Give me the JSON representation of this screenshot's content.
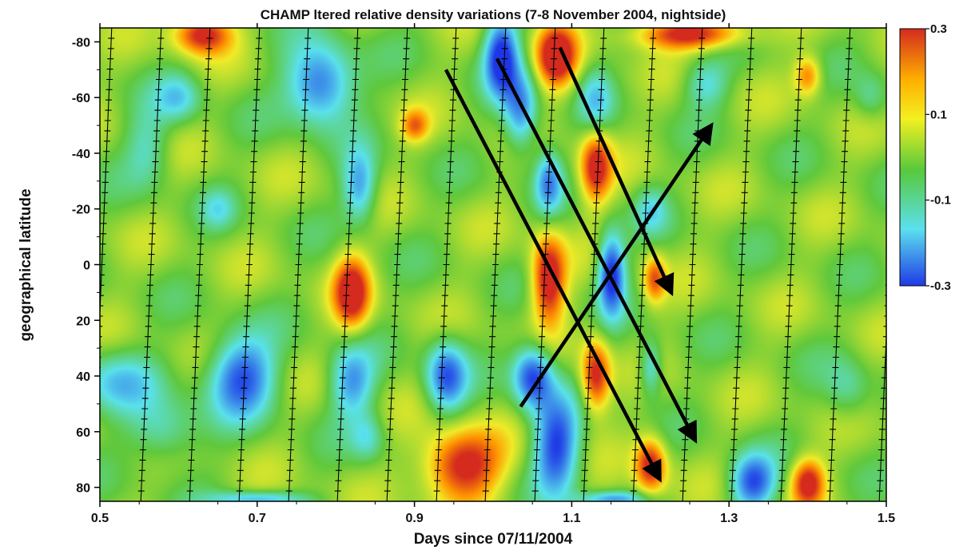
{
  "chart_data": {
    "type": "heatmap",
    "title": "CHAMP ltered relative density variations (7-8 November 2004, nightside)",
    "xlabel": "Days since 07/11/2004",
    "ylabel": "geographical latitude",
    "xlim": [
      0.5,
      1.5
    ],
    "ylim": [
      -85,
      85
    ],
    "y_inverted": true,
    "x_ticks": [
      "0.5",
      "0.7",
      "0.9",
      "1.1",
      "1.3",
      "1.5"
    ],
    "y_ticks": [
      "-80",
      "-60",
      "-40",
      "-20",
      "0",
      "20",
      "40",
      "60",
      "80"
    ],
    "colorbar": {
      "range": [
        -0.3,
        0.3
      ],
      "ticks": [
        "0.3",
        "0.1",
        "-0.1",
        "-0.3"
      ],
      "colors": [
        "#d42b1e",
        "#ffb000",
        "#f3f020",
        "#58c93c",
        "#5be0ee",
        "#1f3ae6"
      ]
    },
    "background_value": 0.03,
    "anomalies": [
      {
        "x": 0.63,
        "lat": -83,
        "value": 0.3,
        "sx": 0.025,
        "sy": 5
      },
      {
        "x": 0.78,
        "lat": -65,
        "value": -0.3,
        "sx": 0.03,
        "sy": 10
      },
      {
        "x": 0.6,
        "lat": -60,
        "value": -0.15,
        "sx": 0.02,
        "sy": 6
      },
      {
        "x": 0.83,
        "lat": -28,
        "value": -0.22,
        "sx": 0.015,
        "sy": 9
      },
      {
        "x": 0.56,
        "lat": -42,
        "value": -0.12,
        "sx": 0.02,
        "sy": 10
      },
      {
        "x": 0.65,
        "lat": -20,
        "value": -0.1,
        "sx": 0.015,
        "sy": 5
      },
      {
        "x": 0.82,
        "lat": 10,
        "value": 0.32,
        "sx": 0.016,
        "sy": 9
      },
      {
        "x": 0.9,
        "lat": -50,
        "value": 0.18,
        "sx": 0.012,
        "sy": 4
      },
      {
        "x": 0.52,
        "lat": 42,
        "value": -0.15,
        "sx": 0.04,
        "sy": 8
      },
      {
        "x": 0.68,
        "lat": 40,
        "value": -0.3,
        "sx": 0.03,
        "sy": 10
      },
      {
        "x": 0.82,
        "lat": 42,
        "value": -0.22,
        "sx": 0.02,
        "sy": 9
      },
      {
        "x": 0.94,
        "lat": 40,
        "value": -0.28,
        "sx": 0.018,
        "sy": 9
      },
      {
        "x": 0.58,
        "lat": 60,
        "value": -0.14,
        "sx": 0.03,
        "sy": 8
      },
      {
        "x": 0.84,
        "lat": 62,
        "value": -0.12,
        "sx": 0.015,
        "sy": 6
      },
      {
        "x": 0.96,
        "lat": 72,
        "value": 0.32,
        "sx": 0.035,
        "sy": 9
      },
      {
        "x": 1.01,
        "lat": -75,
        "value": -0.35,
        "sx": 0.015,
        "sy": 10
      },
      {
        "x": 1.035,
        "lat": -55,
        "value": -0.25,
        "sx": 0.015,
        "sy": 10
      },
      {
        "x": 1.08,
        "lat": -75,
        "value": 0.34,
        "sx": 0.018,
        "sy": 8
      },
      {
        "x": 1.13,
        "lat": -35,
        "value": 0.3,
        "sx": 0.014,
        "sy": 9
      },
      {
        "x": 1.07,
        "lat": -30,
        "value": -0.22,
        "sx": 0.012,
        "sy": 8
      },
      {
        "x": 1.07,
        "lat": 5,
        "value": 0.34,
        "sx": 0.015,
        "sy": 11
      },
      {
        "x": 1.15,
        "lat": 3,
        "value": -0.36,
        "sx": 0.012,
        "sy": 10
      },
      {
        "x": 1.205,
        "lat": 5,
        "value": 0.22,
        "sx": 0.01,
        "sy": 6
      },
      {
        "x": 1.05,
        "lat": 40,
        "value": -0.32,
        "sx": 0.018,
        "sy": 8
      },
      {
        "x": 1.08,
        "lat": 65,
        "value": -0.32,
        "sx": 0.02,
        "sy": 12
      },
      {
        "x": 1.13,
        "lat": 40,
        "value": 0.3,
        "sx": 0.013,
        "sy": 9
      },
      {
        "x": 1.2,
        "lat": 37,
        "value": -0.18,
        "sx": 0.01,
        "sy": 7
      },
      {
        "x": 1.2,
        "lat": 72,
        "value": 0.3,
        "sx": 0.014,
        "sy": 7
      },
      {
        "x": 1.13,
        "lat": -60,
        "value": -0.14,
        "sx": 0.015,
        "sy": 8
      },
      {
        "x": 1.2,
        "lat": -20,
        "value": -0.12,
        "sx": 0.015,
        "sy": 6
      },
      {
        "x": 1.33,
        "lat": 78,
        "value": -0.3,
        "sx": 0.02,
        "sy": 7
      },
      {
        "x": 1.4,
        "lat": 78,
        "value": 0.3,
        "sx": 0.015,
        "sy": 6
      },
      {
        "x": 1.4,
        "lat": -68,
        "value": 0.2,
        "sx": 0.012,
        "sy": 5
      },
      {
        "x": 1.27,
        "lat": -65,
        "value": -0.14,
        "sx": 0.02,
        "sy": 6
      },
      {
        "x": 1.25,
        "lat": -83,
        "value": 0.3,
        "sx": 0.05,
        "sy": 4
      },
      {
        "x": 1.45,
        "lat": 45,
        "value": -0.1,
        "sx": 0.02,
        "sy": 8
      },
      {
        "x": 1.48,
        "lat": -60,
        "value": -0.1,
        "sx": 0.015,
        "sy": 6
      },
      {
        "x": 0.7,
        "lat": 84,
        "value": -0.2,
        "sx": 0.04,
        "sy": 2
      },
      {
        "x": 1.15,
        "lat": 84,
        "value": -0.2,
        "sx": 0.03,
        "sy": 2
      }
    ],
    "orbit_tracks_x": [
      {
        "top": 0.515,
        "bottom": 0.49
      },
      {
        "top": 0.578,
        "bottom": 0.552
      },
      {
        "top": 0.64,
        "bottom": 0.614
      },
      {
        "top": 0.703,
        "bottom": 0.677
      },
      {
        "top": 0.765,
        "bottom": 0.74
      },
      {
        "top": 0.828,
        "bottom": 0.802
      },
      {
        "top": 0.891,
        "bottom": 0.865
      },
      {
        "top": 0.953,
        "bottom": 0.928
      },
      {
        "top": 1.016,
        "bottom": 0.99
      },
      {
        "top": 1.079,
        "bottom": 1.053
      },
      {
        "top": 1.141,
        "bottom": 1.115
      },
      {
        "top": 1.204,
        "bottom": 1.178
      },
      {
        "top": 1.266,
        "bottom": 1.241
      },
      {
        "top": 1.329,
        "bottom": 1.303
      },
      {
        "top": 1.392,
        "bottom": 1.366
      },
      {
        "top": 1.454,
        "bottom": 1.428
      },
      {
        "top": 1.517,
        "bottom": 1.491
      }
    ],
    "arrows": [
      {
        "x1": 0.94,
        "lat1": -70,
        "x2": 1.21,
        "lat2": 76
      },
      {
        "x1": 1.005,
        "lat1": -74,
        "x2": 1.255,
        "lat2": 62
      },
      {
        "x1": 1.085,
        "lat1": -78,
        "x2": 1.225,
        "lat2": 9
      },
      {
        "x1": 1.035,
        "lat1": 51,
        "x2": 1.275,
        "lat2": -49
      }
    ]
  }
}
